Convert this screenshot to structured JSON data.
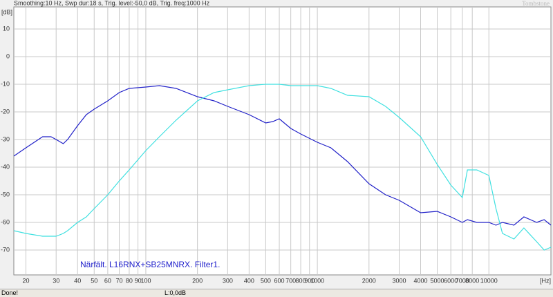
{
  "chart_data": {
    "type": "line",
    "subtitle": "Smoothing:10 Hz, Swp dur:18 s, Trig. level:-50,0 dB, Trig. freq:1000 Hz",
    "watermark": "Tombstone",
    "annotation": "Närfält. L16RNX+SB25MNRX. Filter1.",
    "ylabel": "[dB]",
    "xlabel": "[Hz]",
    "xscale": "log",
    "grid": true,
    "xlim": [
      17,
      23000
    ],
    "ylim": [
      -79,
      18
    ],
    "xticks": [
      20,
      30,
      40,
      50,
      60,
      70,
      80,
      90,
      100,
      200,
      300,
      400,
      500,
      600,
      700,
      800,
      900,
      1000,
      2000,
      3000,
      4000,
      5000,
      6000,
      7000,
      8000,
      10000
    ],
    "yticks": [
      10,
      0,
      -10,
      -20,
      -30,
      -40,
      -50,
      -60,
      -70
    ],
    "x": [
      17,
      20,
      25,
      28,
      30,
      33,
      35,
      40,
      45,
      50,
      60,
      70,
      80,
      100,
      120,
      150,
      200,
      250,
      300,
      400,
      500,
      550,
      600,
      700,
      800,
      1000,
      1200,
      1500,
      2000,
      2500,
      3000,
      4000,
      5000,
      6000,
      7000,
      7500,
      8500,
      10000,
      11000,
      12000,
      14000,
      16000,
      19000,
      21000,
      23000
    ],
    "series": [
      {
        "color": "#2020c8",
        "values": [
          -36,
          -33,
          -29,
          -29,
          -30,
          -31.5,
          -30,
          -25,
          -21,
          -19,
          -16,
          -13,
          -11.5,
          -11,
          -10.5,
          -11.5,
          -14.5,
          -16,
          -18,
          -21,
          -24,
          -23.5,
          -22.5,
          -26,
          -28,
          -31,
          -33,
          -38,
          -46,
          -50,
          -52,
          -56.5,
          -56,
          -58,
          -60,
          -59,
          -60,
          -60,
          -61,
          -60,
          -61,
          -58,
          -60,
          -59,
          -61
        ]
      },
      {
        "color": "#3fe0e0",
        "values": [
          -63,
          -64,
          -65,
          -65,
          -65,
          -64,
          -63,
          -60,
          -58,
          -55,
          -50,
          -45,
          -41,
          -34,
          -29,
          -23,
          -16,
          -13,
          -12,
          -10.5,
          -10,
          -10,
          -10,
          -10.5,
          -10.5,
          -10.5,
          -11.5,
          -14,
          -14.5,
          -18,
          -22,
          -29,
          -39,
          -46.5,
          -51,
          -41,
          -41,
          -43,
          -55,
          -64,
          -66,
          -62,
          -67,
          -70,
          -69
        ]
      }
    ]
  },
  "status_bar": {
    "message": "Done!",
    "level": "L:0,0dB"
  }
}
